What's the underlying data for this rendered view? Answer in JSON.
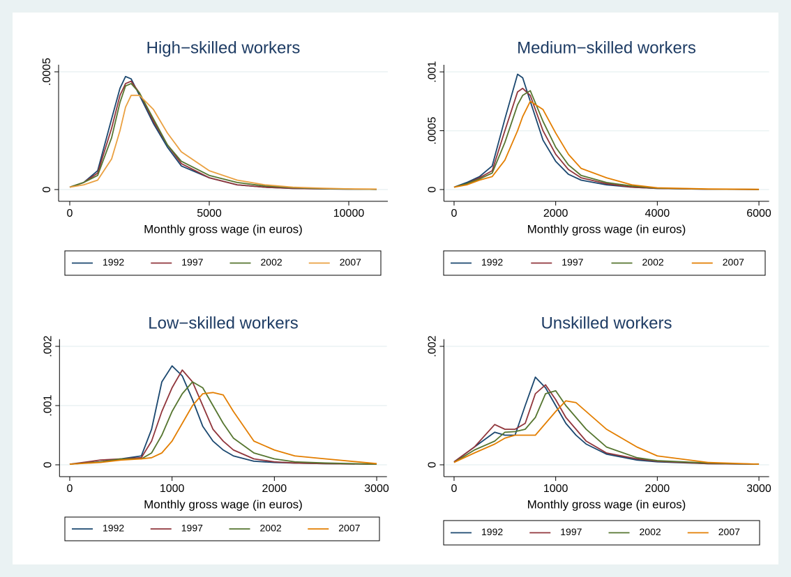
{
  "chart_data": [
    {
      "type": "line",
      "title": "High−skilled workers",
      "x_label": "Monthly gross wage (in euros)",
      "x": [
        0,
        500,
        1000,
        1500,
        1800,
        2000,
        2200,
        2500,
        3000,
        3500,
        4000,
        5000,
        6000,
        7000,
        8000,
        9000,
        10000,
        11000
      ],
      "series": [
        {
          "name": "1992",
          "color": "#1a476f",
          "values": [
            1e-05,
            3e-05,
            8e-05,
            0.0003,
            0.00043,
            0.00048,
            0.00047,
            0.0004,
            0.00028,
            0.00018,
            0.0001,
            5e-05,
            2e-05,
            1e-05,
            5e-06,
            3e-06,
            2e-06,
            1e-06
          ]
        },
        {
          "name": "1997",
          "color": "#90353b",
          "values": [
            1e-05,
            3e-05,
            7e-05,
            0.00026,
            0.0004,
            0.00045,
            0.00046,
            0.00041,
            0.00029,
            0.00019,
            0.00011,
            5e-05,
            2e-05,
            1e-05,
            5e-06,
            3e-06,
            2e-06,
            1e-06
          ]
        },
        {
          "name": "2002",
          "color": "#55752f",
          "values": [
            1e-05,
            3e-05,
            6e-05,
            0.00022,
            0.00037,
            0.00044,
            0.00045,
            0.00041,
            0.0003,
            0.00019,
            0.00012,
            6e-05,
            3e-05,
            1.5e-05,
            8e-06,
            4e-06,
            2e-06,
            1e-06
          ]
        },
        {
          "name": "2007",
          "color": "#eaa040",
          "values": [
            1e-05,
            2e-05,
            4e-05,
            0.00013,
            0.00025,
            0.00035,
            0.0004,
            0.0004,
            0.00034,
            0.00024,
            0.00016,
            8e-05,
            4e-05,
            2e-05,
            1e-05,
            6e-06,
            3e-06,
            2e-06
          ]
        }
      ],
      "xlim": [
        -400,
        11400
      ],
      "xticks": [
        0,
        5000,
        10000
      ],
      "ylim": [
        -5e-05,
        0.00053
      ],
      "yticks": [
        0,
        {
          "value": 0.0005,
          "label": ".0005"
        }
      ],
      "grid": true
    },
    {
      "type": "line",
      "title": "Medium−skilled workers",
      "x_label": "Monthly gross wage (in euros)",
      "x": [
        0,
        250,
        500,
        750,
        1000,
        1250,
        1350,
        1500,
        1750,
        2000,
        2250,
        2500,
        3000,
        3500,
        4000,
        5000,
        6000
      ],
      "series": [
        {
          "name": "1992",
          "color": "#1a476f",
          "values": [
            2e-05,
            6e-05,
            0.00011,
            0.0002,
            0.0006,
            0.00098,
            0.00095,
            0.00075,
            0.00042,
            0.00024,
            0.00013,
            8e-05,
            4e-05,
            2e-05,
            1e-05,
            3e-06,
            1e-06
          ]
        },
        {
          "name": "1997",
          "color": "#90353b",
          "values": [
            2e-05,
            5e-05,
            0.0001,
            0.00016,
            0.0005,
            0.00083,
            0.00086,
            0.0008,
            0.0005,
            0.0003,
            0.00017,
            0.0001,
            5e-05,
            2e-05,
            1e-05,
            3e-06,
            1e-06
          ]
        },
        {
          "name": "2002",
          "color": "#55752f",
          "values": [
            2e-05,
            5e-05,
            9e-05,
            0.00014,
            0.0004,
            0.00072,
            0.0008,
            0.00084,
            0.00058,
            0.00036,
            0.00021,
            0.00012,
            6e-05,
            3e-05,
            1.2e-05,
            4e-06,
            1e-06
          ]
        },
        {
          "name": "2007",
          "color": "#e37e00",
          "values": [
            2e-05,
            4e-05,
            8e-05,
            0.00011,
            0.00025,
            0.0005,
            0.00062,
            0.00075,
            0.00068,
            0.00048,
            0.0003,
            0.00018,
            0.0001,
            4e-05,
            1.5e-05,
            5e-06,
            2e-06
          ]
        }
      ],
      "xlim": [
        -200,
        6200
      ],
      "xticks": [
        0,
        2000,
        4000,
        6000
      ],
      "ylim": [
        -0.0001,
        0.00106
      ],
      "yticks": [
        0,
        {
          "value": 0.0005,
          "label": ".0005"
        },
        {
          "value": 0.001,
          "label": ".001"
        }
      ],
      "grid": true
    },
    {
      "type": "line",
      "title": "Low−skilled workers",
      "x_label": "Monthly gross wage (in euros)",
      "x": [
        0,
        300,
        500,
        700,
        800,
        900,
        1000,
        1100,
        1200,
        1300,
        1400,
        1500,
        1600,
        1800,
        2000,
        2200,
        2500,
        3000
      ],
      "series": [
        {
          "name": "1992",
          "color": "#1a476f",
          "values": [
            1e-05,
            5e-05,
            0.0001,
            0.00015,
            0.0006,
            0.0014,
            0.00167,
            0.0015,
            0.0011,
            0.00065,
            0.0004,
            0.00025,
            0.00015,
            6e-05,
            4e-05,
            3e-05,
            2e-05,
            1e-05
          ]
        },
        {
          "name": "1997",
          "color": "#90353b",
          "values": [
            1e-05,
            8e-05,
            0.0001,
            0.00012,
            0.0004,
            0.0009,
            0.0013,
            0.0016,
            0.0014,
            0.001,
            0.0006,
            0.0004,
            0.00025,
            0.0001,
            5e-05,
            3e-05,
            2e-05,
            1e-05
          ]
        },
        {
          "name": "2002",
          "color": "#55752f",
          "values": [
            1e-05,
            5e-05,
            0.0001,
            0.0001,
            0.0002,
            0.0005,
            0.0009,
            0.0012,
            0.0014,
            0.0013,
            0.001,
            0.0007,
            0.00045,
            0.0002,
            0.0001,
            5e-05,
            3e-05,
            1e-05
          ]
        },
        {
          "name": "2007",
          "color": "#e37e00",
          "values": [
            1e-05,
            4e-05,
            8e-05,
            0.0001,
            0.00012,
            0.0002,
            0.0004,
            0.0007,
            0.001,
            0.0012,
            0.00122,
            0.00118,
            0.0009,
            0.0004,
            0.00025,
            0.00015,
            0.0001,
            2e-05
          ]
        }
      ],
      "xlim": [
        -100,
        3100
      ],
      "xticks": [
        0,
        1000,
        2000,
        3000
      ],
      "ylim": [
        -0.0002,
        0.00212
      ],
      "yticks": [
        0,
        {
          "value": 0.001,
          "label": ".001"
        },
        {
          "value": 0.002,
          "label": ".002"
        }
      ],
      "grid": true
    },
    {
      "type": "line",
      "title": "Unskilled workers",
      "x_label": "Monthly gross wage (in euros)",
      "x": [
        0,
        200,
        400,
        500,
        600,
        700,
        800,
        900,
        1000,
        1100,
        1200,
        1300,
        1500,
        1800,
        2000,
        2500,
        3000
      ],
      "series": [
        {
          "name": "1992",
          "color": "#1a476f",
          "values": [
            5e-05,
            0.0003,
            0.00055,
            0.0005,
            0.0005,
            0.001,
            0.00148,
            0.0013,
            0.001,
            0.0007,
            0.0005,
            0.00035,
            0.00018,
            8e-05,
            5e-05,
            2e-05,
            1e-05
          ]
        },
        {
          "name": "1997",
          "color": "#90353b",
          "values": [
            5e-05,
            0.0003,
            0.00068,
            0.0006,
            0.0006,
            0.0007,
            0.0012,
            0.00135,
            0.0011,
            0.0008,
            0.0006,
            0.0004,
            0.0002,
            0.0001,
            6e-05,
            2e-05,
            1e-05
          ]
        },
        {
          "name": "2002",
          "color": "#55752f",
          "values": [
            4e-05,
            0.00025,
            0.0004,
            0.00055,
            0.00056,
            0.0006,
            0.0008,
            0.0012,
            0.00125,
            0.001,
            0.0008,
            0.0006,
            0.0003,
            0.00012,
            7e-05,
            3e-05,
            1e-05
          ]
        },
        {
          "name": "2007",
          "color": "#e37e00",
          "values": [
            4e-05,
            0.0002,
            0.00035,
            0.00045,
            0.0005,
            0.0005,
            0.0005,
            0.0007,
            0.0009,
            0.00108,
            0.00105,
            0.0009,
            0.0006,
            0.0003,
            0.00015,
            4e-05,
            1e-05
          ]
        }
      ],
      "xlim": [
        -100,
        3100
      ],
      "xticks": [
        0,
        1000,
        2000,
        3000
      ],
      "ylim": [
        -0.0002,
        0.00212
      ],
      "yticks": [
        0,
        {
          "value": 0.002,
          "label": ".002"
        }
      ],
      "grid": true
    }
  ]
}
